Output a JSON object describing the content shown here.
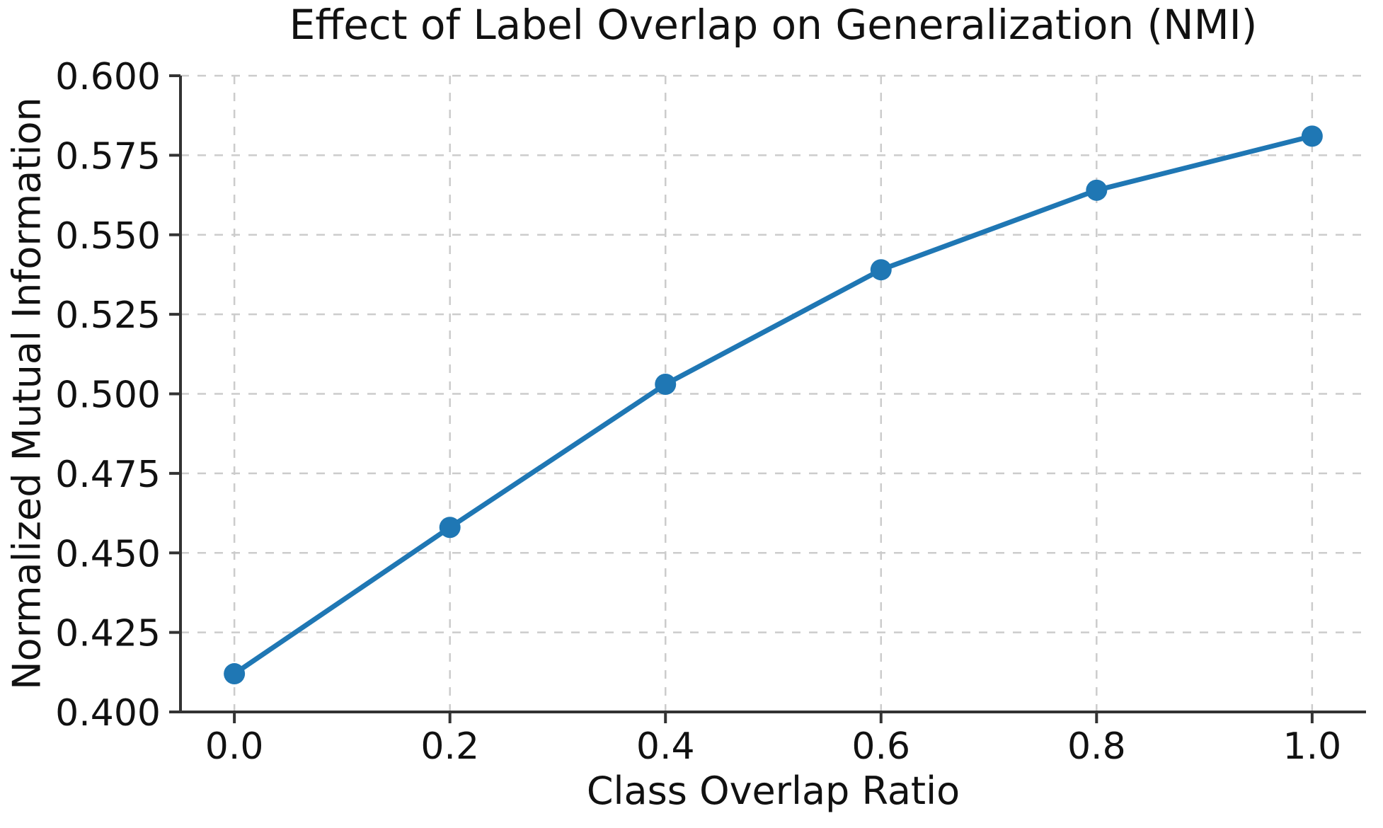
{
  "figure": {
    "background_color": "#ffffff"
  },
  "chart_data": {
    "type": "line",
    "title": "Effect of Label Overlap on Generalization (NMI)",
    "xlabel": "Class Overlap Ratio",
    "ylabel": "Normalized Mutual Information",
    "x": [
      0.0,
      0.2,
      0.4,
      0.6,
      0.8,
      1.0
    ],
    "series": [
      {
        "name": "nmi",
        "values": [
          0.412,
          0.458,
          0.503,
          0.539,
          0.564,
          0.581
        ],
        "color": "#1f77b4",
        "marker": "circle"
      }
    ],
    "xlim": [
      -0.05,
      1.05
    ],
    "ylim": [
      0.4,
      0.6
    ],
    "x_ticks": [
      0.0,
      0.2,
      0.4,
      0.6,
      0.8,
      1.0
    ],
    "x_tick_labels": [
      "0.0",
      "0.2",
      "0.4",
      "0.6",
      "0.8",
      "1.0"
    ],
    "y_ticks": [
      0.4,
      0.425,
      0.45,
      0.475,
      0.5,
      0.525,
      0.55,
      0.575,
      0.6
    ],
    "y_tick_labels": [
      "0.400",
      "0.425",
      "0.450",
      "0.475",
      "0.500",
      "0.525",
      "0.550",
      "0.575",
      "0.600"
    ],
    "grid": true,
    "grid_style": "dashed",
    "grid_color": "#cccccc",
    "spine_color": "#333333",
    "tick_color": "#333333",
    "text_color": "#111111",
    "legend": "none",
    "spines": [
      "left",
      "bottom"
    ]
  }
}
